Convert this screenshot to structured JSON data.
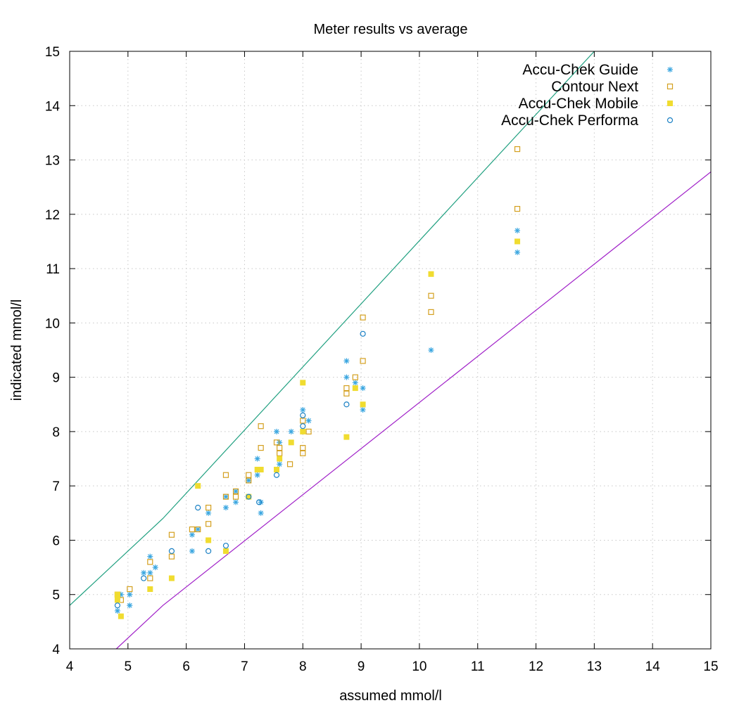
{
  "chart_data": {
    "type": "scatter",
    "title": "Meter results vs average",
    "xlabel": "assumed mmol/l",
    "ylabel": "indicated mmol/l",
    "xlim": [
      4,
      15
    ],
    "ylim": [
      4,
      15
    ],
    "xticks": [
      "4",
      "5",
      "6",
      "7",
      "8",
      "9",
      "10",
      "11",
      "12",
      "13",
      "14",
      "15"
    ],
    "yticks": [
      "4",
      "5",
      "6",
      "7",
      "8",
      "9",
      "10",
      "11",
      "12",
      "13",
      "14",
      "15"
    ],
    "grid": true,
    "legend_position": "top-right",
    "series": [
      {
        "name": "Accu-Chek Guide",
        "marker": "asterisk",
        "color": "#3aa6e0",
        "points": [
          [
            4.82,
            4.7
          ],
          [
            4.88,
            5.0
          ],
          [
            5.03,
            5.0
          ],
          [
            5.03,
            4.8
          ],
          [
            5.27,
            5.4
          ],
          [
            5.38,
            5.7
          ],
          [
            5.38,
            5.4
          ],
          [
            5.47,
            5.5
          ],
          [
            6.1,
            5.8
          ],
          [
            6.1,
            6.1
          ],
          [
            6.2,
            6.2
          ],
          [
            6.38,
            6.5
          ],
          [
            6.68,
            6.6
          ],
          [
            6.68,
            6.8
          ],
          [
            6.85,
            6.7
          ],
          [
            6.85,
            6.9
          ],
          [
            7.07,
            7.1
          ],
          [
            7.22,
            7.5
          ],
          [
            7.22,
            7.2
          ],
          [
            7.28,
            6.7
          ],
          [
            7.28,
            6.5
          ],
          [
            7.55,
            8.0
          ],
          [
            7.6,
            7.4
          ],
          [
            7.6,
            7.8
          ],
          [
            7.8,
            8.0
          ],
          [
            8.0,
            8.4
          ],
          [
            8.1,
            8.2
          ],
          [
            8.75,
            9.3
          ],
          [
            8.75,
            9.0
          ],
          [
            8.9,
            8.9
          ],
          [
            9.03,
            8.4
          ],
          [
            9.03,
            8.8
          ],
          [
            10.2,
            9.5
          ],
          [
            11.68,
            11.7
          ],
          [
            11.68,
            11.3
          ]
        ]
      },
      {
        "name": "Contour Next",
        "marker": "open-square",
        "color": "#d4a020",
        "points": [
          [
            4.82,
            5.0
          ],
          [
            4.88,
            4.9
          ],
          [
            5.03,
            5.1
          ],
          [
            5.38,
            5.6
          ],
          [
            5.38,
            5.3
          ],
          [
            5.75,
            6.1
          ],
          [
            5.75,
            5.7
          ],
          [
            6.1,
            6.2
          ],
          [
            6.2,
            6.2
          ],
          [
            6.38,
            6.6
          ],
          [
            6.38,
            6.3
          ],
          [
            6.68,
            7.2
          ],
          [
            6.68,
            6.8
          ],
          [
            6.85,
            6.9
          ],
          [
            6.85,
            6.8
          ],
          [
            7.07,
            7.1
          ],
          [
            7.07,
            7.2
          ],
          [
            7.28,
            8.1
          ],
          [
            7.28,
            7.7
          ],
          [
            7.55,
            7.8
          ],
          [
            7.6,
            7.7
          ],
          [
            7.6,
            7.6
          ],
          [
            7.78,
            7.4
          ],
          [
            8.0,
            8.2
          ],
          [
            8.0,
            7.7
          ],
          [
            8.0,
            7.6
          ],
          [
            8.1,
            8.0
          ],
          [
            8.75,
            8.8
          ],
          [
            8.75,
            8.7
          ],
          [
            8.9,
            9.0
          ],
          [
            9.03,
            10.1
          ],
          [
            9.03,
            9.3
          ],
          [
            10.2,
            10.5
          ],
          [
            10.2,
            10.2
          ],
          [
            11.68,
            13.2
          ],
          [
            11.68,
            12.1
          ]
        ]
      },
      {
        "name": "Accu-Chek Mobile",
        "marker": "filled-square",
        "color": "#f0dc30",
        "points": [
          [
            4.82,
            5.0
          ],
          [
            4.82,
            4.9
          ],
          [
            4.88,
            4.6
          ],
          [
            5.38,
            5.1
          ],
          [
            5.75,
            5.3
          ],
          [
            6.2,
            7.0
          ],
          [
            6.38,
            6.0
          ],
          [
            6.68,
            5.8
          ],
          [
            7.07,
            6.8
          ],
          [
            7.22,
            7.3
          ],
          [
            7.28,
            7.3
          ],
          [
            7.55,
            7.3
          ],
          [
            7.6,
            7.5
          ],
          [
            7.8,
            7.8
          ],
          [
            8.0,
            8.9
          ],
          [
            8.0,
            8.0
          ],
          [
            8.75,
            7.9
          ],
          [
            8.9,
            8.8
          ],
          [
            9.03,
            8.5
          ],
          [
            10.2,
            10.9
          ],
          [
            11.68,
            11.5
          ]
        ]
      },
      {
        "name": "Accu-Chek Performa",
        "marker": "open-circle",
        "color": "#1a80c4",
        "points": [
          [
            4.82,
            4.8
          ],
          [
            5.27,
            5.3
          ],
          [
            5.75,
            5.8
          ],
          [
            6.2,
            6.6
          ],
          [
            6.38,
            5.8
          ],
          [
            6.68,
            5.9
          ],
          [
            7.07,
            6.8
          ],
          [
            7.25,
            6.7
          ],
          [
            7.55,
            7.2
          ],
          [
            8.0,
            8.3
          ],
          [
            8.0,
            8.1
          ],
          [
            8.75,
            8.5
          ],
          [
            9.03,
            9.8
          ]
        ]
      },
      {
        "name": "",
        "marker": "line",
        "color": "#20a080",
        "points": [
          [
            4.0,
            4.8
          ],
          [
            5.6,
            6.4
          ],
          [
            13.0,
            15.0
          ]
        ]
      },
      {
        "name": "",
        "marker": "line",
        "color": "#a020c8",
        "points": [
          [
            4.8,
            4.0
          ],
          [
            5.6,
            4.8
          ],
          [
            15.0,
            12.78
          ]
        ]
      }
    ]
  }
}
